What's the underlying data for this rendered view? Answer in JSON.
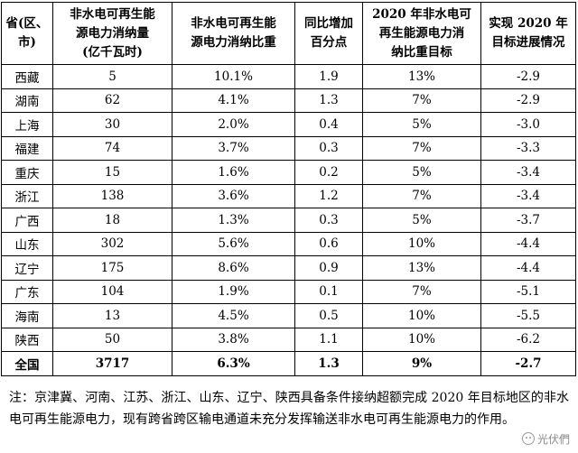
{
  "table": {
    "headers": [
      [
        "省(区、",
        "市)"
      ],
      [
        "非水电可再生能",
        "源电力消纳量",
        "(亿千瓦时)"
      ],
      [
        "非水电可再生能",
        "源电力消纳比重"
      ],
      [
        "同比增加",
        "百分点"
      ],
      [
        "2020 年非水电可",
        "再生能源电力消",
        "纳比重目标"
      ],
      [
        "实现 2020 年",
        "目标进展情况"
      ]
    ],
    "rows": [
      [
        "西藏",
        "5",
        "10.1%",
        "1.9",
        "13%",
        "-2.9"
      ],
      [
        "湖南",
        "62",
        "4.1%",
        "1.3",
        "7%",
        "-2.9"
      ],
      [
        "上海",
        "30",
        "2.0%",
        "0.4",
        "5%",
        "-3.0"
      ],
      [
        "福建",
        "74",
        "3.7%",
        "0.3",
        "7%",
        "-3.3"
      ],
      [
        "重庆",
        "15",
        "1.6%",
        "0.2",
        "5%",
        "-3.4"
      ],
      [
        "浙江",
        "138",
        "3.6%",
        "1.2",
        "7%",
        "-3.4"
      ],
      [
        "广西",
        "18",
        "1.3%",
        "0.3",
        "5%",
        "-3.7"
      ],
      [
        "山东",
        "302",
        "5.6%",
        "0.6",
        "10%",
        "-4.4"
      ],
      [
        "辽宁",
        "175",
        "8.6%",
        "0.9",
        "13%",
        "-4.4"
      ],
      [
        "广东",
        "104",
        "1.9%",
        "0.1",
        "7%",
        "-5.1"
      ],
      [
        "海南",
        "13",
        "4.5%",
        "0.5",
        "10%",
        "-5.5"
      ],
      [
        "陕西",
        "50",
        "3.8%",
        "1.1",
        "10%",
        "-6.2"
      ]
    ],
    "total": [
      "全国",
      "3717",
      "6.3%",
      "1.3",
      "9%",
      "-2.7"
    ]
  },
  "note": "注：京津冀、河南、江苏、浙江、山东、辽宁、陕西具备条件接纳超额完成 2020 年目标地区的非水电可再生能源电力，现有跨省跨区输电通道未充分发挥输送非水电可再生能源电力的作用。",
  "watermark": {
    "text": "光伏們",
    "icon": "wechat-icon"
  }
}
